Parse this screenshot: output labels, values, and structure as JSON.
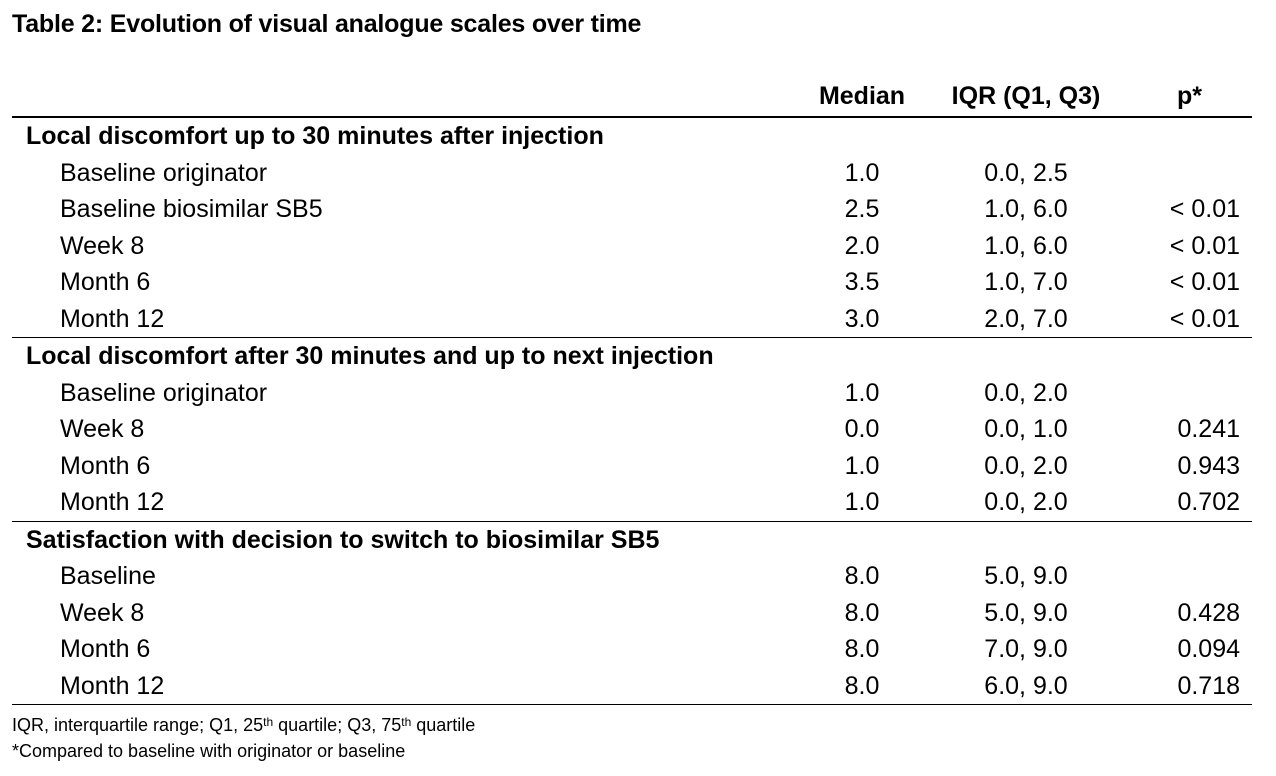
{
  "title": "Table 2: Evolution of visual analogue scales over time",
  "columns": {
    "median": "Median",
    "iqr": "IQR (Q1, Q3)",
    "p": "p*"
  },
  "sections": [
    {
      "label": "Local discomfort up to 30 minutes after injection",
      "rows": [
        {
          "label": "Baseline originator",
          "median": "1.0",
          "iqr": "0.0, 2.5",
          "p": ""
        },
        {
          "label": "Baseline biosimilar SB5",
          "median": "2.5",
          "iqr": "1.0, 6.0",
          "p": "< 0.01"
        },
        {
          "label": "Week 8",
          "median": "2.0",
          "iqr": "1.0, 6.0",
          "p": "< 0.01"
        },
        {
          "label": "Month 6",
          "median": "3.5",
          "iqr": "1.0, 7.0",
          "p": "< 0.01"
        },
        {
          "label": "Month 12",
          "median": "3.0",
          "iqr": "2.0, 7.0",
          "p": "< 0.01"
        }
      ]
    },
    {
      "label": "Local discomfort after 30 minutes and up to next injection",
      "rows": [
        {
          "label": "Baseline originator",
          "median": "1.0",
          "iqr": "0.0, 2.0",
          "p": ""
        },
        {
          "label": "Week 8",
          "median": "0.0",
          "iqr": "0.0, 1.0",
          "p": "0.241"
        },
        {
          "label": "Month 6",
          "median": "1.0",
          "iqr": "0.0, 2.0",
          "p": "0.943"
        },
        {
          "label": "Month 12",
          "median": "1.0",
          "iqr": "0.0, 2.0",
          "p": "0.702"
        }
      ]
    },
    {
      "label": "Satisfaction with decision to switch to biosimilar SB5",
      "rows": [
        {
          "label": "Baseline",
          "median": "8.0",
          "iqr": "5.0, 9.0",
          "p": ""
        },
        {
          "label": "Week 8",
          "median": "8.0",
          "iqr": "5.0, 9.0",
          "p": "0.428"
        },
        {
          "label": "Month 6",
          "median": "8.0",
          "iqr": "7.0, 9.0",
          "p": "0.094"
        },
        {
          "label": "Month 12",
          "median": "8.0",
          "iqr": "6.0, 9.0",
          "p": "0.718"
        }
      ]
    }
  ],
  "footnotes": {
    "line1_a": "IQR, interquartile range; Q1, 25",
    "line1_sup1": "th",
    "line1_b": " quartile; Q3, 75",
    "line1_sup2": "th",
    "line1_c": " quartile",
    "line2": "*Compared to baseline with originator or baseline"
  }
}
